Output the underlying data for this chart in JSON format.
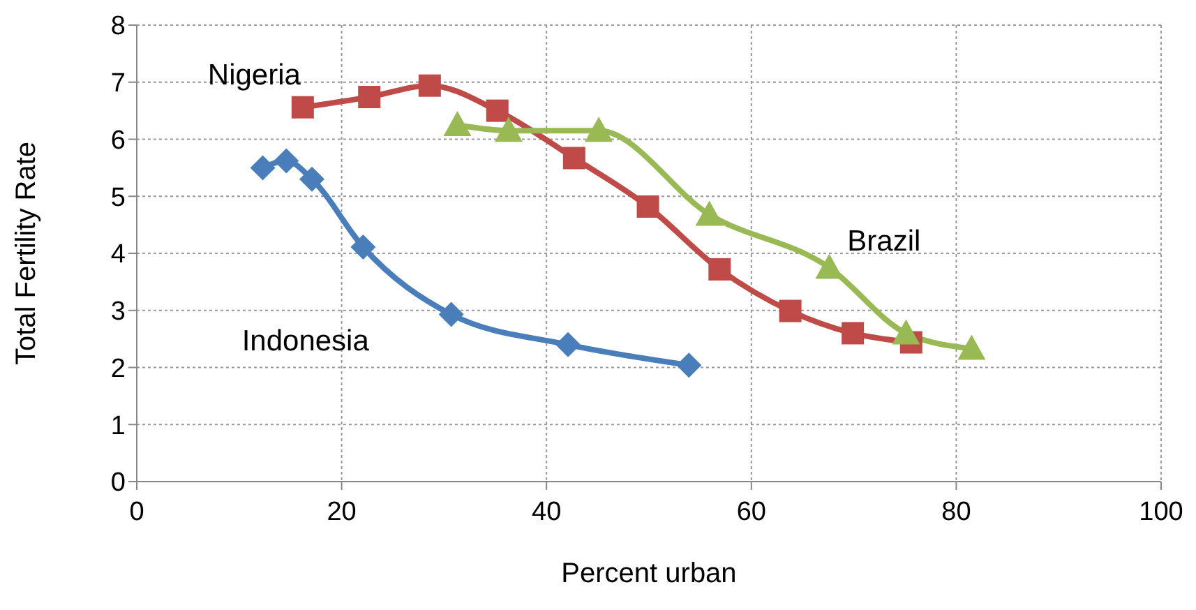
{
  "chart_data": {
    "type": "line",
    "xlabel": "Percent urban",
    "ylabel": "Total Fertility Rate",
    "xlim": [
      0,
      100
    ],
    "xticks": [
      0,
      20,
      40,
      60,
      80,
      100
    ],
    "ylim": [
      0,
      8
    ],
    "yticks": [
      0,
      1,
      2,
      3,
      4,
      5,
      6,
      7,
      8
    ],
    "grid": true,
    "legend": false,
    "line_style": "solid",
    "series": [
      {
        "name": "Indonesia",
        "color": "#4a7ebb",
        "marker": "diamond",
        "x": [
          12.3,
          14.6,
          17.1,
          22.1,
          30.7,
          42.1,
          53.9
        ],
        "values": [
          5.5,
          5.62,
          5.3,
          4.11,
          2.93,
          2.4,
          2.04
        ]
      },
      {
        "name": "Nigeria",
        "color": "#be4b48",
        "marker": "square",
        "x": [
          16.2,
          22.7,
          28.6,
          35.2,
          42.7,
          49.9,
          56.9,
          63.8,
          69.9,
          75.6
        ],
        "values": [
          6.56,
          6.74,
          6.94,
          6.5,
          5.67,
          4.82,
          3.72,
          2.99,
          2.6,
          2.44
        ]
      },
      {
        "name": "Brazil",
        "color": "#98b954",
        "marker": "triangle",
        "x": [
          31.3,
          36.3,
          45.1,
          55.9,
          67.6,
          75.1,
          81.5
        ],
        "values": [
          6.25,
          6.15,
          6.15,
          4.68,
          3.75,
          2.6,
          2.33
        ]
      }
    ]
  }
}
